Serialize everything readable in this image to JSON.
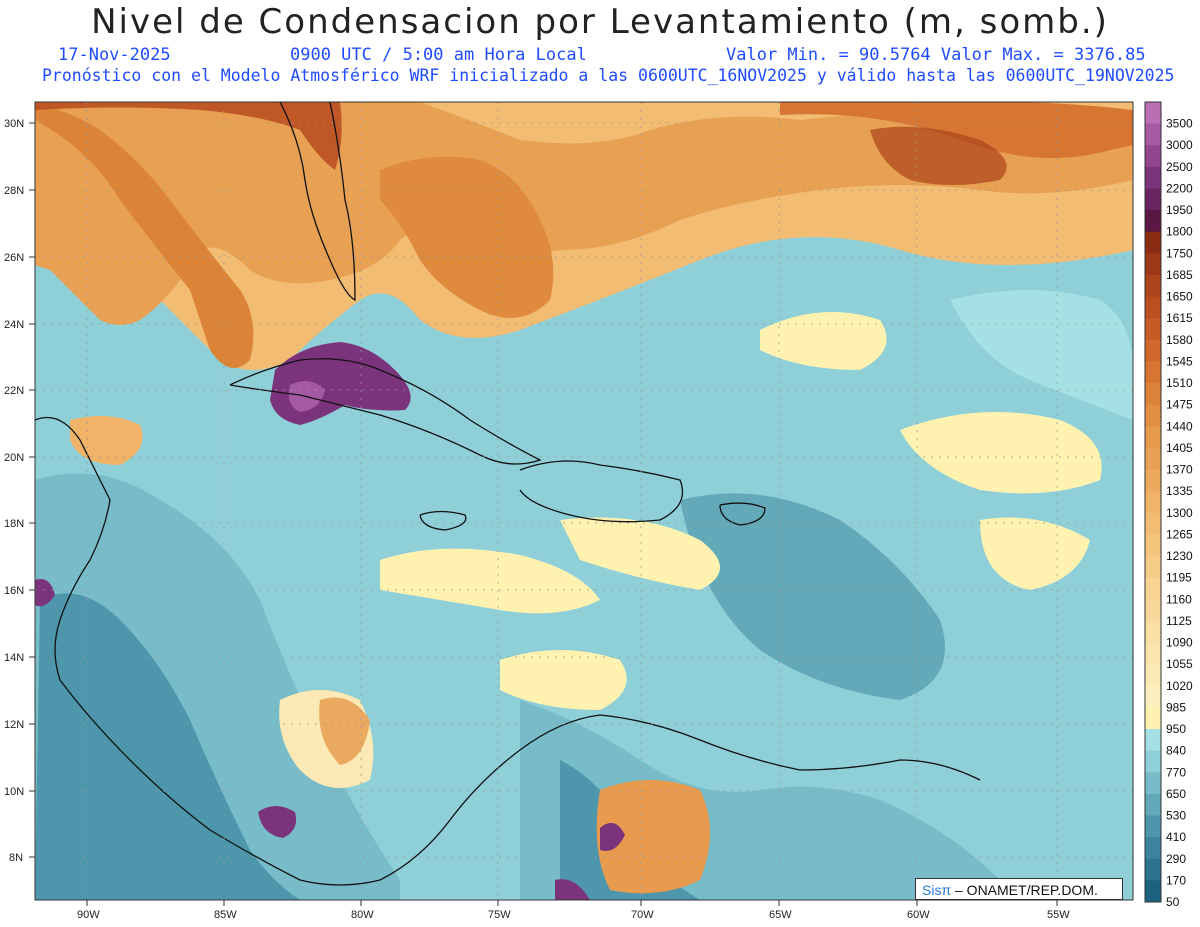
{
  "header": {
    "title": "Nivel de Condensacion por Levantamiento (m, somb.)",
    "date": "17-Nov-2025",
    "time": "0900 UTC / 5:00 am Hora Local",
    "minmax": "Valor Min. = 90.5764   Valor Max. = 3376.85",
    "forecast": "Pronóstico con el Modelo Atmosférico WRF inicializado a las 0600UTC_16NOV2025 y válido hasta las  0600UTC_19NOV2025"
  },
  "axes": {
    "lat_labels": [
      "30N",
      "28N",
      "26N",
      "24N",
      "22N",
      "20N",
      "18N",
      "16N",
      "14N",
      "12N",
      "10N",
      "8N"
    ],
    "lon_labels": [
      "90W",
      "85W",
      "80W",
      "75W",
      "70W",
      "65W",
      "60W",
      "55W"
    ]
  },
  "legend": {
    "levels": [
      "3500",
      "3000",
      "2500",
      "2200",
      "1950",
      "1800",
      "1750",
      "1685",
      "1650",
      "1615",
      "1580",
      "1545",
      "1510",
      "1475",
      "1440",
      "1405",
      "1370",
      "1335",
      "1300",
      "1265",
      "1230",
      "1195",
      "1160",
      "1125",
      "1090",
      "1055",
      "1020",
      "985",
      "950",
      "840",
      "770",
      "650",
      "530",
      "410",
      "290",
      "170",
      "50"
    ],
    "colors": [
      "#b86fb4",
      "#a45aa2",
      "#8f468f",
      "#7b347c",
      "#67245f",
      "#5a1744",
      "#8a2c13",
      "#9c3817",
      "#ad431b",
      "#bb4f20",
      "#c75b25",
      "#d0682b",
      "#d77532",
      "#dd823a",
      "#e28e42",
      "#e69a4b",
      "#ea9f56",
      "#edaa5f",
      "#f0b368",
      "#f2bc72",
      "#f4c47c",
      "#f6cc86",
      "#f8d391",
      "#f9d99b",
      "#fbdfa5",
      "#fce4ae",
      "#fde9b6",
      "#fcefbe",
      "#fff2b0",
      "#a4e0e4",
      "#8fcfd8",
      "#79bcc9",
      "#63a9ba",
      "#4e96ac",
      "#3c849e",
      "#2b738f",
      "#1c6382"
    ]
  },
  "credit": {
    "brand": "Sisπ",
    "text": " – ONAMET/REP.DOM."
  }
}
